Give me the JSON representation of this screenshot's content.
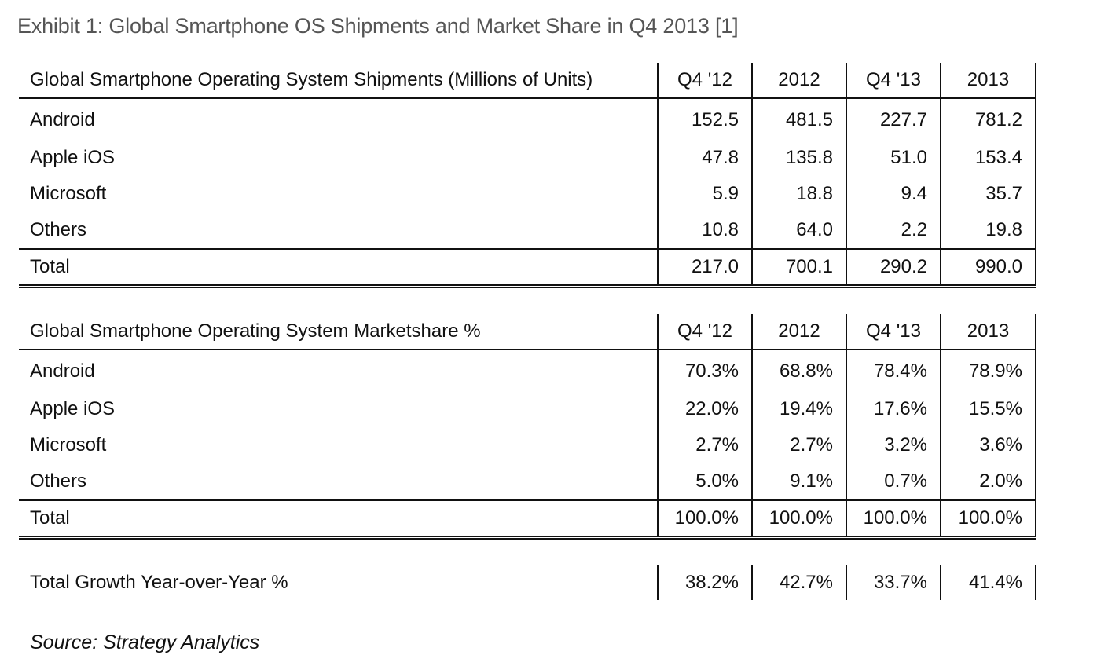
{
  "title": "Exhibit 1: Global Smartphone OS Shipments and Market Share in Q4 2013  [1]",
  "shipments": {
    "header": "Global Smartphone Operating System Shipments (Millions of Units)",
    "columns": [
      "Q4 '12",
      "2012",
      "Q4 '13",
      "2013"
    ],
    "rows": [
      {
        "label": "Android",
        "values": [
          "152.5",
          "481.5",
          "227.7",
          "781.2"
        ]
      },
      {
        "label": "Apple iOS",
        "values": [
          "47.8",
          "135.8",
          "51.0",
          "153.4"
        ]
      },
      {
        "label": "Microsoft",
        "values": [
          "5.9",
          "18.8",
          "9.4",
          "35.7"
        ]
      },
      {
        "label": "Others",
        "values": [
          "10.8",
          "64.0",
          "2.2",
          "19.8"
        ]
      }
    ],
    "total": {
      "label": "Total",
      "values": [
        "217.0",
        "700.1",
        "290.2",
        "990.0"
      ]
    }
  },
  "marketshare": {
    "header": "Global Smartphone Operating System Marketshare  %",
    "columns": [
      "Q4 '12",
      "2012",
      "Q4 '13",
      "2013"
    ],
    "rows": [
      {
        "label": "Android",
        "values": [
          "70.3%",
          "68.8%",
          "78.4%",
          "78.9%"
        ]
      },
      {
        "label": "Apple iOS",
        "values": [
          "22.0%",
          "19.4%",
          "17.6%",
          "15.5%"
        ]
      },
      {
        "label": "Microsoft",
        "values": [
          "2.7%",
          "2.7%",
          "3.2%",
          "3.6%"
        ]
      },
      {
        "label": "Others",
        "values": [
          "5.0%",
          "9.1%",
          "0.7%",
          "2.0%"
        ]
      }
    ],
    "total": {
      "label": "Total",
      "values": [
        "100.0%",
        "100.0%",
        "100.0%",
        "100.0%"
      ]
    }
  },
  "growth": {
    "label": "Total Growth Year-over-Year %",
    "values": [
      "38.2%",
      "42.7%",
      "33.7%",
      "41.4%"
    ]
  },
  "source": "Source: Strategy Analytics"
}
